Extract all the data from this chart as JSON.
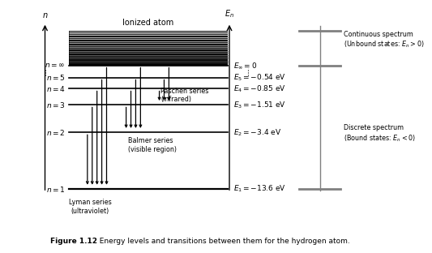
{
  "level_labels_left": {
    "n1": "$n = 1$",
    "n2": "$n = 2$",
    "n3": "$n = 3$",
    "n4": "$n = 4$",
    "n5": "$n = 5$",
    "ninf": "$n = \\infty$"
  },
  "level_labels_right": {
    "n1": "$E_1 = -13.6$ eV",
    "n2": "$E_2 = -3.4$ eV",
    "n3": "$E_3 = -1.51$ eV",
    "n4": "$E_4 = -0.85$ eV",
    "n5": "$E_5 = -0.54$ eV",
    "ninf": "$E_\\infty = 0$"
  },
  "ionized_label": "Ionized atom",
  "caption_bold": "Figure 1.12",
  "caption_rest": "  Energy levels and transitions between them for the hydrogen atom.",
  "continuous_text": "Continuous spectrum\n(Unbound states: $E_n > 0$)",
  "discrete_text": "Discrete spectrum\n(Bound states: $E_n < 0$)",
  "lyman_label": "Lyman series\n(ultraviolet)",
  "balmer_label": "Balmer series\n(visible region)",
  "paschen_label": "Paschen series\n(infrared)",
  "bg_color": "#ffffff"
}
